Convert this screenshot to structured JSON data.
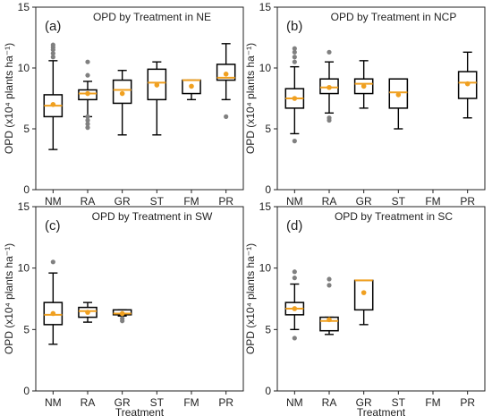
{
  "chart_data": {
    "type": "boxplot",
    "categories": [
      "NM",
      "RA",
      "GR",
      "ST",
      "FM",
      "PR"
    ],
    "ylim": [
      0,
      15
    ],
    "yticks": [
      0,
      5,
      10,
      15
    ],
    "ylabel": "OPD (x10⁴ plants ha⁻¹)",
    "xlabel": "Treatment",
    "box_color": "#000000",
    "median_color": "#f0a020",
    "mean_color": "#f0a020",
    "outlier_color": "#808080",
    "panels": [
      {
        "label": "(a)",
        "title": "OPD by Treatment in NE",
        "boxes": [
          {
            "cat": "NM",
            "whislo": 3.3,
            "q1": 6.0,
            "med": 6.9,
            "q3": 7.8,
            "whishi": 10.6,
            "mean": 7.0,
            "fliers": [
              10.9,
              11.2,
              11.5,
              11.7,
              11.9
            ]
          },
          {
            "cat": "RA",
            "whislo": 6.0,
            "q1": 7.4,
            "med": 7.9,
            "q3": 8.2,
            "whishi": 8.9,
            "mean": 7.9,
            "fliers": [
              5.1,
              5.4,
              5.7,
              6.0,
              9.4,
              10.5
            ]
          },
          {
            "cat": "GR",
            "whislo": 4.5,
            "q1": 7.1,
            "med": 8.2,
            "q3": 9.0,
            "whishi": 9.8,
            "mean": 7.9,
            "fliers": []
          },
          {
            "cat": "ST",
            "whislo": 4.5,
            "q1": 7.4,
            "med": 8.8,
            "q3": 9.9,
            "whishi": 10.5,
            "mean": 8.6,
            "fliers": []
          },
          {
            "cat": "FM",
            "whislo": 7.4,
            "q1": 7.9,
            "med": 9.0,
            "q3": 9.0,
            "whishi": 9.0,
            "mean": 8.5,
            "fliers": []
          },
          {
            "cat": "PR",
            "whislo": 7.4,
            "q1": 9.0,
            "med": 9.2,
            "q3": 10.3,
            "whishi": 12.0,
            "mean": 9.5,
            "fliers": [
              6.0
            ]
          }
        ]
      },
      {
        "label": "(b)",
        "title": "OPD by Treatment in NCP",
        "boxes": [
          {
            "cat": "NM",
            "whislo": 4.6,
            "q1": 6.7,
            "med": 7.5,
            "q3": 8.3,
            "whishi": 10.1,
            "mean": 7.5,
            "fliers": [
              4.0,
              10.5,
              10.9,
              11.3,
              11.6
            ]
          },
          {
            "cat": "RA",
            "whislo": 6.3,
            "q1": 7.9,
            "med": 8.4,
            "q3": 9.1,
            "whishi": 10.5,
            "mean": 8.4,
            "fliers": [
              5.7,
              5.9,
              11.3
            ]
          },
          {
            "cat": "GR",
            "whislo": 6.7,
            "q1": 7.9,
            "med": 8.7,
            "q3": 9.1,
            "whishi": 10.6,
            "mean": 8.5,
            "fliers": []
          },
          {
            "cat": "ST",
            "whislo": 5.0,
            "q1": 6.7,
            "med": 8.0,
            "q3": 9.1,
            "whishi": 9.1,
            "mean": 7.8,
            "fliers": []
          },
          {
            "cat": "PR",
            "whislo": 5.9,
            "q1": 7.5,
            "med": 8.8,
            "q3": 9.7,
            "whishi": 11.3,
            "mean": 8.7,
            "fliers": []
          }
        ]
      },
      {
        "label": "(c)",
        "title": "OPD by Treatment in SW",
        "boxes": [
          {
            "cat": "NM",
            "whislo": 3.8,
            "q1": 5.4,
            "med": 6.2,
            "q3": 7.2,
            "whishi": 9.6,
            "mean": 6.3,
            "fliers": [
              10.5
            ]
          },
          {
            "cat": "RA",
            "whislo": 5.6,
            "q1": 6.0,
            "med": 6.5,
            "q3": 6.8,
            "whishi": 7.2,
            "mean": 6.4,
            "fliers": []
          },
          {
            "cat": "GR",
            "whislo": 6.1,
            "q1": 6.2,
            "med": 6.3,
            "q3": 6.6,
            "whishi": 6.6,
            "mean": 6.3,
            "fliers": [
              5.7,
              5.9
            ]
          }
        ]
      },
      {
        "label": "(d)",
        "title": "OPD by Treatment in SC",
        "boxes": [
          {
            "cat": "NM",
            "whislo": 5.0,
            "q1": 6.2,
            "med": 6.7,
            "q3": 7.2,
            "whishi": 8.7,
            "mean": 6.7,
            "fliers": [
              4.3,
              9.2,
              9.7
            ]
          },
          {
            "cat": "RA",
            "whislo": 4.6,
            "q1": 4.9,
            "med": 5.7,
            "q3": 6.0,
            "whishi": 6.0,
            "mean": 5.8,
            "fliers": [
              8.6,
              9.1
            ]
          },
          {
            "cat": "GR",
            "whislo": 5.4,
            "q1": 6.6,
            "med": 9.0,
            "q3": 9.0,
            "whishi": 9.0,
            "mean": 8.0,
            "fliers": []
          }
        ]
      }
    ]
  }
}
